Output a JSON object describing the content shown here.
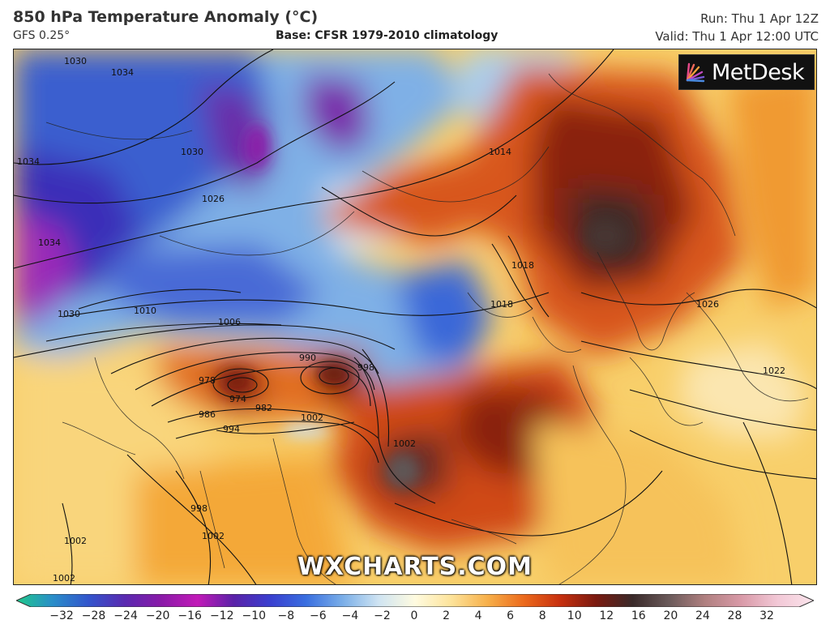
{
  "header": {
    "title": "850 hPa Temperature Anomaly (°C)",
    "model": "GFS 0.25°",
    "base": "Base: CFSR 1979-2010 climatology",
    "run": "Run: Thu 1 Apr 12Z",
    "valid": "Valid: Thu 1 Apr 12:00 UTC"
  },
  "branding": {
    "logo_text": "MetDesk",
    "watermark": "WXCHARTS.COM"
  },
  "isobar_labels": [
    "1030",
    "1034",
    "1034",
    "1030",
    "1026",
    "1034",
    "1030",
    "1010",
    "1006",
    "990",
    "998",
    "978",
    "974",
    "982",
    "986",
    "994",
    "1002",
    "1002",
    "1014",
    "1018",
    "1018",
    "1026",
    "1022",
    "998",
    "1002",
    "1002",
    "1002"
  ],
  "colorbar": {
    "ticks": [
      "−32",
      "−28",
      "−24",
      "−20",
      "−16",
      "−12",
      "−10",
      "−8",
      "−6",
      "−4",
      "−2",
      "0",
      "2",
      "4",
      "6",
      "8",
      "10",
      "12",
      "16",
      "20",
      "24",
      "28",
      "32"
    ],
    "colors": [
      "#1fc98a",
      "#2a8ec9",
      "#3355cc",
      "#5a2ab0",
      "#8a1aa8",
      "#c21ab8",
      "#5a22a8",
      "#3a3fcf",
      "#3a6fe0",
      "#7aaee8",
      "#cfe4f2",
      "#fffbe0",
      "#fde39a",
      "#f7b04a",
      "#ec6a1c",
      "#c7300f",
      "#7a1a10",
      "#3a2a2a",
      "#6a5a5a",
      "#b08080",
      "#d99aa8",
      "#f2c8d6",
      "#fbe4ec"
    ]
  }
}
